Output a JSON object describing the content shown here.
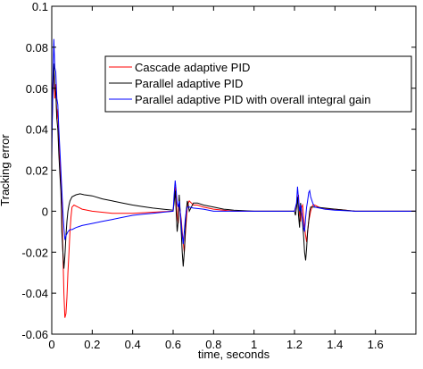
{
  "chart_data": {
    "type": "line",
    "xlabel": "time, seconds",
    "ylabel": "Tracking error",
    "xlim": [
      0,
      1.8
    ],
    "ylim": [
      -0.06,
      0.1
    ],
    "xticks": [
      0,
      0.2,
      0.4,
      0.6,
      0.8,
      1,
      1.2,
      1.4,
      1.6
    ],
    "yticks": [
      -0.06,
      -0.04,
      -0.02,
      0,
      0.02,
      0.04,
      0.06,
      0.08,
      0.1
    ],
    "xtick_labels": [
      "0",
      "0.2",
      "0.4",
      "0.6",
      "0.8",
      "1",
      "1.2",
      "1.4",
      "1.6"
    ],
    "ytick_labels": [
      "-0.06",
      "-0.04",
      "-0.02",
      "0",
      "0.02",
      "0.04",
      "0.06",
      "0.08",
      "0.1"
    ],
    "grid": false,
    "legend_position": "top-right",
    "series": [
      {
        "name": "Cascade adaptive PID",
        "color": "#ff0000",
        "points": [
          [
            0,
            0.035
          ],
          [
            0.005,
            0.06
          ],
          [
            0.01,
            0.07
          ],
          [
            0.015,
            0.055
          ],
          [
            0.02,
            0.062
          ],
          [
            0.025,
            0.045
          ],
          [
            0.03,
            0.05
          ],
          [
            0.035,
            0.035
          ],
          [
            0.04,
            0.025
          ],
          [
            0.045,
            0.015
          ],
          [
            0.05,
            0.0
          ],
          [
            0.055,
            -0.02
          ],
          [
            0.06,
            -0.04
          ],
          [
            0.065,
            -0.052
          ],
          [
            0.07,
            -0.05
          ],
          [
            0.075,
            -0.042
          ],
          [
            0.08,
            -0.03
          ],
          [
            0.085,
            -0.02
          ],
          [
            0.09,
            -0.01
          ],
          [
            0.095,
            -0.003
          ],
          [
            0.1,
            0.002
          ],
          [
            0.11,
            0.003
          ],
          [
            0.13,
            0.002
          ],
          [
            0.15,
            0.001
          ],
          [
            0.2,
            0.0
          ],
          [
            0.3,
            -0.001
          ],
          [
            0.4,
            -0.001
          ],
          [
            0.5,
            -0.0005
          ],
          [
            0.6,
            0.0
          ],
          [
            0.605,
            0.005
          ],
          [
            0.61,
            0.012
          ],
          [
            0.615,
            0.005
          ],
          [
            0.62,
            -0.002
          ],
          [
            0.625,
            -0.006
          ],
          [
            0.63,
            0.003
          ],
          [
            0.635,
            0.0
          ],
          [
            0.64,
            -0.004
          ],
          [
            0.645,
            -0.01
          ],
          [
            0.65,
            -0.015
          ],
          [
            0.655,
            -0.02
          ],
          [
            0.66,
            -0.012
          ],
          [
            0.665,
            -0.005
          ],
          [
            0.67,
            0.002
          ],
          [
            0.675,
            0.004
          ],
          [
            0.68,
            0.005
          ],
          [
            0.69,
            0.004
          ],
          [
            0.7,
            0.003
          ],
          [
            0.72,
            0.003
          ],
          [
            0.75,
            0.002
          ],
          [
            0.8,
            0.001
          ],
          [
            0.9,
            0.0
          ],
          [
            1.0,
            0.0
          ],
          [
            1.1,
            0.0
          ],
          [
            1.2,
            0.0
          ],
          [
            1.21,
            0.003
          ],
          [
            1.22,
            0.008
          ],
          [
            1.225,
            -0.002
          ],
          [
            1.23,
            -0.005
          ],
          [
            1.235,
            0.002
          ],
          [
            1.24,
            0.003
          ],
          [
            1.245,
            -0.003
          ],
          [
            1.25,
            -0.008
          ],
          [
            1.255,
            -0.012
          ],
          [
            1.26,
            -0.015
          ],
          [
            1.265,
            -0.01
          ],
          [
            1.27,
            -0.005
          ],
          [
            1.28,
            0.0
          ],
          [
            1.29,
            0.003
          ],
          [
            1.3,
            0.003
          ],
          [
            1.32,
            0.002
          ],
          [
            1.35,
            0.001
          ],
          [
            1.4,
            0.001
          ],
          [
            1.5,
            0.0
          ],
          [
            1.6,
            0.0
          ],
          [
            1.7,
            0.0
          ],
          [
            1.8,
            0.0
          ]
        ]
      },
      {
        "name": "Parallel adaptive PID",
        "color": "#000000",
        "points": [
          [
            0,
            0.035
          ],
          [
            0.005,
            0.055
          ],
          [
            0.01,
            0.072
          ],
          [
            0.015,
            0.06
          ],
          [
            0.02,
            0.058
          ],
          [
            0.025,
            0.045
          ],
          [
            0.03,
            0.04
          ],
          [
            0.035,
            0.028
          ],
          [
            0.04,
            0.018
          ],
          [
            0.045,
            0.01
          ],
          [
            0.048,
            0.0
          ],
          [
            0.05,
            -0.01
          ],
          [
            0.055,
            -0.02
          ],
          [
            0.06,
            -0.028
          ],
          [
            0.065,
            -0.022
          ],
          [
            0.07,
            -0.012
          ],
          [
            0.075,
            -0.005
          ],
          [
            0.08,
            0.0
          ],
          [
            0.085,
            0.003
          ],
          [
            0.09,
            0.005
          ],
          [
            0.1,
            0.007
          ],
          [
            0.12,
            0.008
          ],
          [
            0.14,
            0.0085
          ],
          [
            0.16,
            0.008
          ],
          [
            0.2,
            0.0075
          ],
          [
            0.25,
            0.006
          ],
          [
            0.3,
            0.005
          ],
          [
            0.35,
            0.004
          ],
          [
            0.4,
            0.003
          ],
          [
            0.45,
            0.0022
          ],
          [
            0.5,
            0.0015
          ],
          [
            0.55,
            0.001
          ],
          [
            0.6,
            0.0005
          ],
          [
            0.605,
            0.004
          ],
          [
            0.61,
            0.01
          ],
          [
            0.615,
            0.0
          ],
          [
            0.62,
            -0.01
          ],
          [
            0.625,
            -0.005
          ],
          [
            0.63,
            0.008
          ],
          [
            0.635,
            0.0
          ],
          [
            0.64,
            -0.01
          ],
          [
            0.645,
            -0.02
          ],
          [
            0.65,
            -0.027
          ],
          [
            0.655,
            -0.02
          ],
          [
            0.66,
            -0.01
          ],
          [
            0.665,
            0.0
          ],
          [
            0.67,
            0.005
          ],
          [
            0.675,
            0.003
          ],
          [
            0.68,
            0.0
          ],
          [
            0.69,
            0.002
          ],
          [
            0.7,
            0.004
          ],
          [
            0.72,
            0.004
          ],
          [
            0.75,
            0.003
          ],
          [
            0.8,
            0.002
          ],
          [
            0.85,
            0.001
          ],
          [
            0.9,
            0.0005
          ],
          [
            1.0,
            0.0
          ],
          [
            1.1,
            0.0
          ],
          [
            1.2,
            0.0
          ],
          [
            1.205,
            -0.002
          ],
          [
            1.21,
            0.002
          ],
          [
            1.215,
            0.007
          ],
          [
            1.22,
            -0.002
          ],
          [
            1.225,
            -0.008
          ],
          [
            1.23,
            0.004
          ],
          [
            1.235,
            0.0
          ],
          [
            1.24,
            -0.006
          ],
          [
            1.245,
            -0.012
          ],
          [
            1.25,
            -0.02
          ],
          [
            1.255,
            -0.024
          ],
          [
            1.26,
            -0.018
          ],
          [
            1.265,
            -0.01
          ],
          [
            1.27,
            -0.005
          ],
          [
            1.275,
            0.0
          ],
          [
            1.28,
            0.002
          ],
          [
            1.29,
            0.002
          ],
          [
            1.3,
            0.002
          ],
          [
            1.35,
            0.0015
          ],
          [
            1.4,
            0.001
          ],
          [
            1.5,
            0.0
          ],
          [
            1.6,
            0.0
          ],
          [
            1.7,
            0.0
          ],
          [
            1.8,
            0.0
          ]
        ]
      },
      {
        "name": "Parallel adaptive PID with overall integral gain",
        "color": "#0000ff",
        "points": [
          [
            0,
            0.025
          ],
          [
            0.005,
            0.06
          ],
          [
            0.01,
            0.084
          ],
          [
            0.015,
            0.07
          ],
          [
            0.02,
            0.068
          ],
          [
            0.025,
            0.055
          ],
          [
            0.03,
            0.052
          ],
          [
            0.035,
            0.04
          ],
          [
            0.04,
            0.03
          ],
          [
            0.045,
            0.02
          ],
          [
            0.05,
            0.01
          ],
          [
            0.055,
            0.0
          ],
          [
            0.06,
            -0.008
          ],
          [
            0.065,
            -0.014
          ],
          [
            0.07,
            -0.012
          ],
          [
            0.08,
            -0.01
          ],
          [
            0.09,
            -0.009
          ],
          [
            0.1,
            -0.009
          ],
          [
            0.12,
            -0.008
          ],
          [
            0.15,
            -0.007
          ],
          [
            0.2,
            -0.006
          ],
          [
            0.25,
            -0.005
          ],
          [
            0.3,
            -0.004
          ],
          [
            0.35,
            -0.003
          ],
          [
            0.4,
            -0.002
          ],
          [
            0.45,
            -0.0015
          ],
          [
            0.5,
            -0.001
          ],
          [
            0.55,
            -0.0005
          ],
          [
            0.6,
            0.0
          ],
          [
            0.605,
            0.008
          ],
          [
            0.61,
            0.015
          ],
          [
            0.615,
            0.01
          ],
          [
            0.62,
            0.004
          ],
          [
            0.625,
            0.002
          ],
          [
            0.63,
            0.005
          ],
          [
            0.635,
            0.0
          ],
          [
            0.64,
            -0.006
          ],
          [
            0.645,
            -0.012
          ],
          [
            0.65,
            -0.016
          ],
          [
            0.655,
            -0.01
          ],
          [
            0.66,
            -0.004
          ],
          [
            0.665,
            0.0
          ],
          [
            0.67,
            0.002
          ],
          [
            0.68,
            0.002
          ],
          [
            0.7,
            0.0015
          ],
          [
            0.75,
            0.001
          ],
          [
            0.8,
            0.0
          ],
          [
            0.9,
            0.0
          ],
          [
            1.0,
            0.0
          ],
          [
            1.1,
            0.0
          ],
          [
            1.2,
            0.0
          ],
          [
            1.21,
            0.004
          ],
          [
            1.215,
            0.012
          ],
          [
            1.22,
            0.006
          ],
          [
            1.225,
            0.0
          ],
          [
            1.23,
            0.003
          ],
          [
            1.235,
            0.0
          ],
          [
            1.24,
            -0.004
          ],
          [
            1.245,
            -0.008
          ],
          [
            1.25,
            -0.01
          ],
          [
            1.255,
            -0.003
          ],
          [
            1.26,
            0.002
          ],
          [
            1.265,
            0.005
          ],
          [
            1.27,
            0.009
          ],
          [
            1.275,
            0.01
          ],
          [
            1.28,
            0.007
          ],
          [
            1.29,
            0.004
          ],
          [
            1.3,
            0.002
          ],
          [
            1.35,
            0.001
          ],
          [
            1.4,
            0.0005
          ],
          [
            1.5,
            0.0
          ],
          [
            1.6,
            0.0
          ],
          [
            1.7,
            0.0
          ],
          [
            1.8,
            0.0
          ]
        ]
      }
    ]
  }
}
